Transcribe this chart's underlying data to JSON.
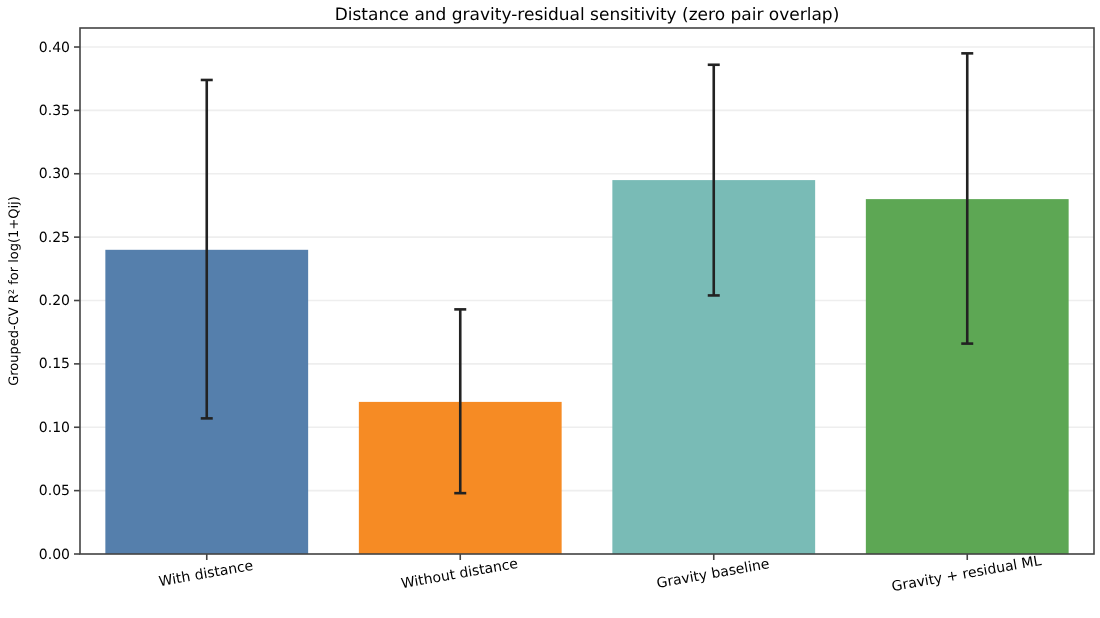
{
  "chart_data": {
    "type": "bar",
    "title": "Distance and gravity-residual sensitivity (zero pair overlap)",
    "ylabel": "Grouped-CV R² for log(1+Qij)",
    "categories": [
      "With distance",
      "Without distance",
      "Gravity baseline",
      "Gravity + residual ML"
    ],
    "values": [
      0.24,
      0.12,
      0.295,
      0.28
    ],
    "colors": [
      "#4c78a8",
      "#f58518",
      "#72b7b2",
      "#54a24b"
    ],
    "errors": [
      [
        0.107,
        0.374
      ],
      [
        0.048,
        0.193
      ],
      [
        0.204,
        0.386
      ],
      [
        0.166,
        0.395
      ]
    ],
    "ylim": [
      0,
      0.415
    ],
    "yticks": [
      {
        "value": 0,
        "label": "0.00"
      },
      {
        "value": 0.05,
        "label": "0.05"
      },
      {
        "value": 0.1,
        "label": "0.10"
      },
      {
        "value": 0.15,
        "label": "0.15"
      },
      {
        "value": 0.2,
        "label": "0.20"
      },
      {
        "value": 0.25,
        "label": "0.25"
      },
      {
        "value": 0.3,
        "label": "0.30"
      },
      {
        "value": 0.35,
        "label": "0.35"
      },
      {
        "value": 0.4,
        "label": "0.40"
      }
    ],
    "grid": "y"
  }
}
